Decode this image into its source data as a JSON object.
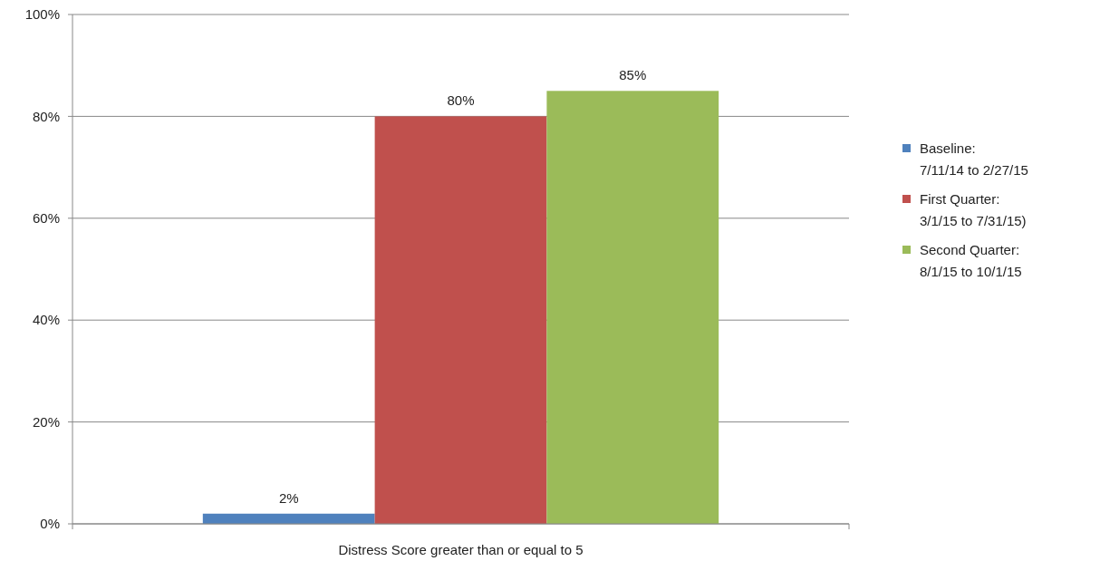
{
  "chart_data": {
    "type": "bar",
    "categories": [
      "Distress Score greater than or equal to 5"
    ],
    "series": [
      {
        "name": "Baseline:\n7/11/14 to 2/27/15",
        "color": "#4f81bd",
        "values": [
          2
        ],
        "value_labels": [
          "2%"
        ]
      },
      {
        "name": "First Quarter:\n3/1/15 to 7/31/15)",
        "color": "#c0504d",
        "values": [
          80
        ],
        "value_labels": [
          "80%"
        ]
      },
      {
        "name": "Second Quarter:\n8/1/15 to 10/1/15",
        "color": "#9bbb59",
        "values": [
          85
        ],
        "value_labels": [
          "85%"
        ]
      }
    ],
    "ylim": [
      0,
      100
    ],
    "yticks": [
      {
        "value": 0,
        "label": "0%"
      },
      {
        "value": 20,
        "label": "20%"
      },
      {
        "value": 40,
        "label": "40%"
      },
      {
        "value": 60,
        "label": "60%"
      },
      {
        "value": 80,
        "label": "80%"
      },
      {
        "value": 100,
        "label": "100%"
      }
    ],
    "grid": "y",
    "legend": "right"
  }
}
